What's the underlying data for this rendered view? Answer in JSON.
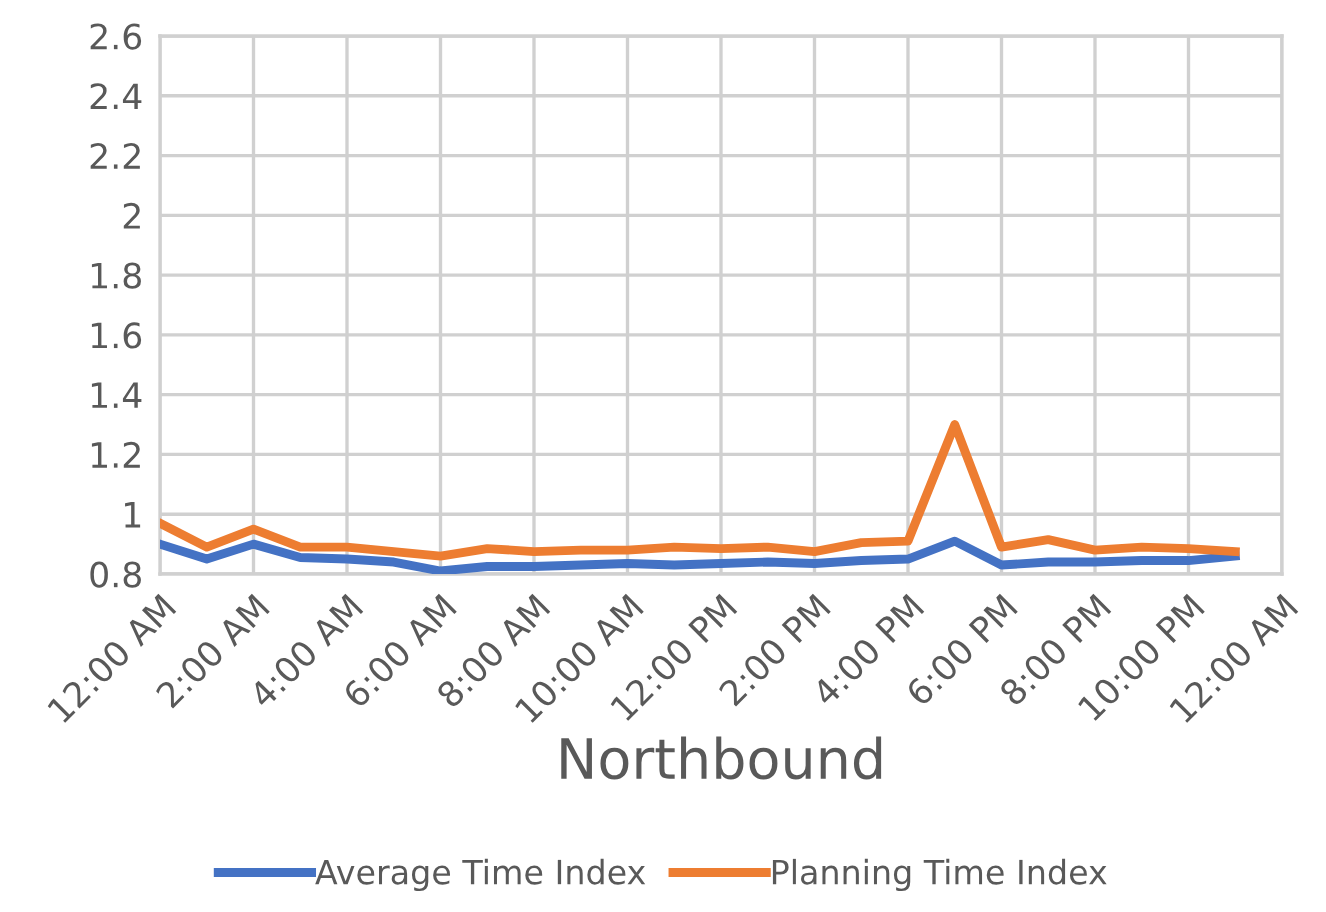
{
  "chart_data": {
    "type": "line",
    "xlabel": "Northbound",
    "x": [
      0,
      1,
      2,
      3,
      4,
      5,
      6,
      7,
      8,
      9,
      10,
      11,
      12,
      13,
      14,
      15,
      16,
      17,
      18,
      19,
      20,
      21,
      22,
      23
    ],
    "series": [
      {
        "name": "Average Time Index",
        "color": "#4472c4",
        "values": [
          0.9,
          0.85,
          0.9,
          0.855,
          0.85,
          0.84,
          0.81,
          0.825,
          0.825,
          0.83,
          0.835,
          0.83,
          0.835,
          0.84,
          0.835,
          0.845,
          0.85,
          0.91,
          0.83,
          0.84,
          0.84,
          0.845,
          0.845,
          0.86
        ]
      },
      {
        "name": "Planning Time Index",
        "color": "#ed7d31",
        "values": [
          0.97,
          0.89,
          0.95,
          0.89,
          0.89,
          0.875,
          0.86,
          0.885,
          0.875,
          0.88,
          0.88,
          0.89,
          0.885,
          0.89,
          0.875,
          0.905,
          0.91,
          1.3,
          0.89,
          0.915,
          0.88,
          0.89,
          0.885,
          0.875
        ]
      }
    ],
    "xlim": [
      0,
      24
    ],
    "xticks": [
      {
        "value": 0,
        "label": "12:00 AM"
      },
      {
        "value": 2,
        "label": "2:00 AM"
      },
      {
        "value": 4,
        "label": "4:00 AM"
      },
      {
        "value": 6,
        "label": "6:00 AM"
      },
      {
        "value": 8,
        "label": "8:00 AM"
      },
      {
        "value": 10,
        "label": "10:00 AM"
      },
      {
        "value": 12,
        "label": "12:00 PM"
      },
      {
        "value": 14,
        "label": "2:00 PM"
      },
      {
        "value": 16,
        "label": "4:00 PM"
      },
      {
        "value": 18,
        "label": "6:00 PM"
      },
      {
        "value": 20,
        "label": "8:00 PM"
      },
      {
        "value": 22,
        "label": "10:00 PM"
      },
      {
        "value": 24,
        "label": "12:00 AM"
      }
    ],
    "ylim": [
      0.8,
      2.6
    ],
    "yticks": [
      0.8,
      1,
      1.2,
      1.4,
      1.6,
      1.8,
      2,
      2.2,
      2.4,
      2.6
    ],
    "grid": true,
    "legend": "bottom",
    "marker": "none",
    "line_style": "solid"
  }
}
